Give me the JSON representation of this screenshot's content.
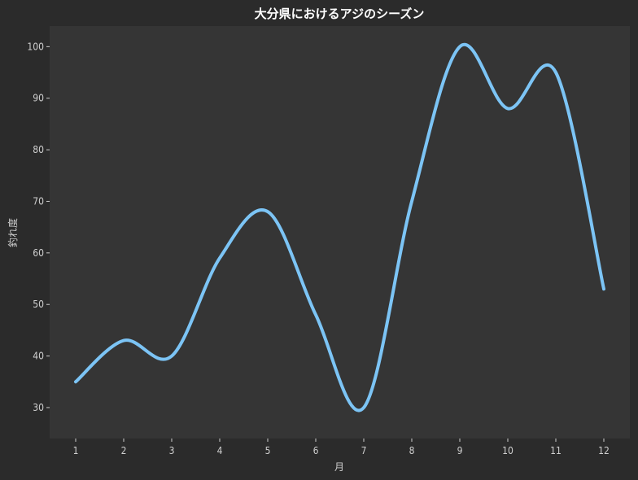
{
  "chart_data": {
    "type": "line",
    "title": "大分県におけるアジのシーズン",
    "xlabel": "月",
    "ylabel": "釣れ度",
    "x": [
      1,
      2,
      3,
      4,
      5,
      6,
      7,
      8,
      9,
      10,
      11,
      12
    ],
    "x_ticks": [
      "1",
      "2",
      "3",
      "4",
      "5",
      "6",
      "7",
      "8",
      "9",
      "10",
      "11",
      "12"
    ],
    "y_ticks": [
      "30",
      "40",
      "50",
      "60",
      "70",
      "80",
      "90",
      "100"
    ],
    "ylim": [
      24,
      104
    ],
    "grid": false,
    "smooth": true,
    "series": [
      {
        "values": [
          35,
          43,
          40,
          59,
          68,
          48,
          30,
          70,
          100,
          88,
          95,
          53
        ]
      }
    ],
    "colors": {
      "line": "#7cc4f5",
      "plot_background": "#353535",
      "background": "#2b2b2b",
      "text": "#cfcfcf",
      "title": "#ffffff"
    }
  }
}
